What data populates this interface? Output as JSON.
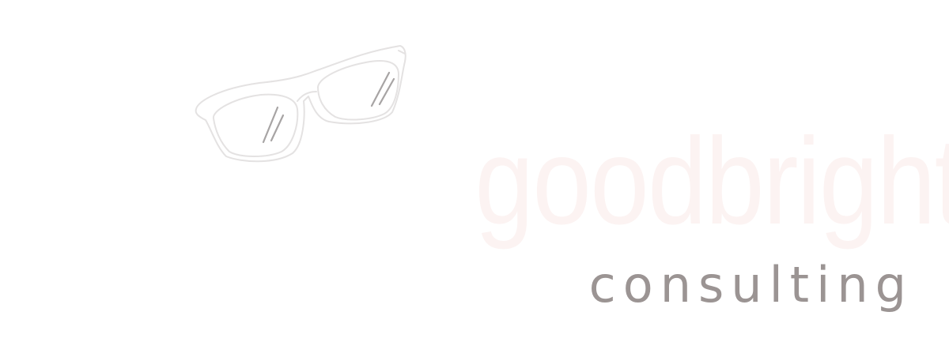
{
  "logo": {
    "icon": "glasses-icon",
    "name": "goodbright",
    "tagline": "consulting",
    "colors": {
      "name": "#fcf3f2",
      "tagline": "#9b9493",
      "frame": "#e4e2e2",
      "glint": "#a7a4a4",
      "background": "#ffffff"
    }
  }
}
